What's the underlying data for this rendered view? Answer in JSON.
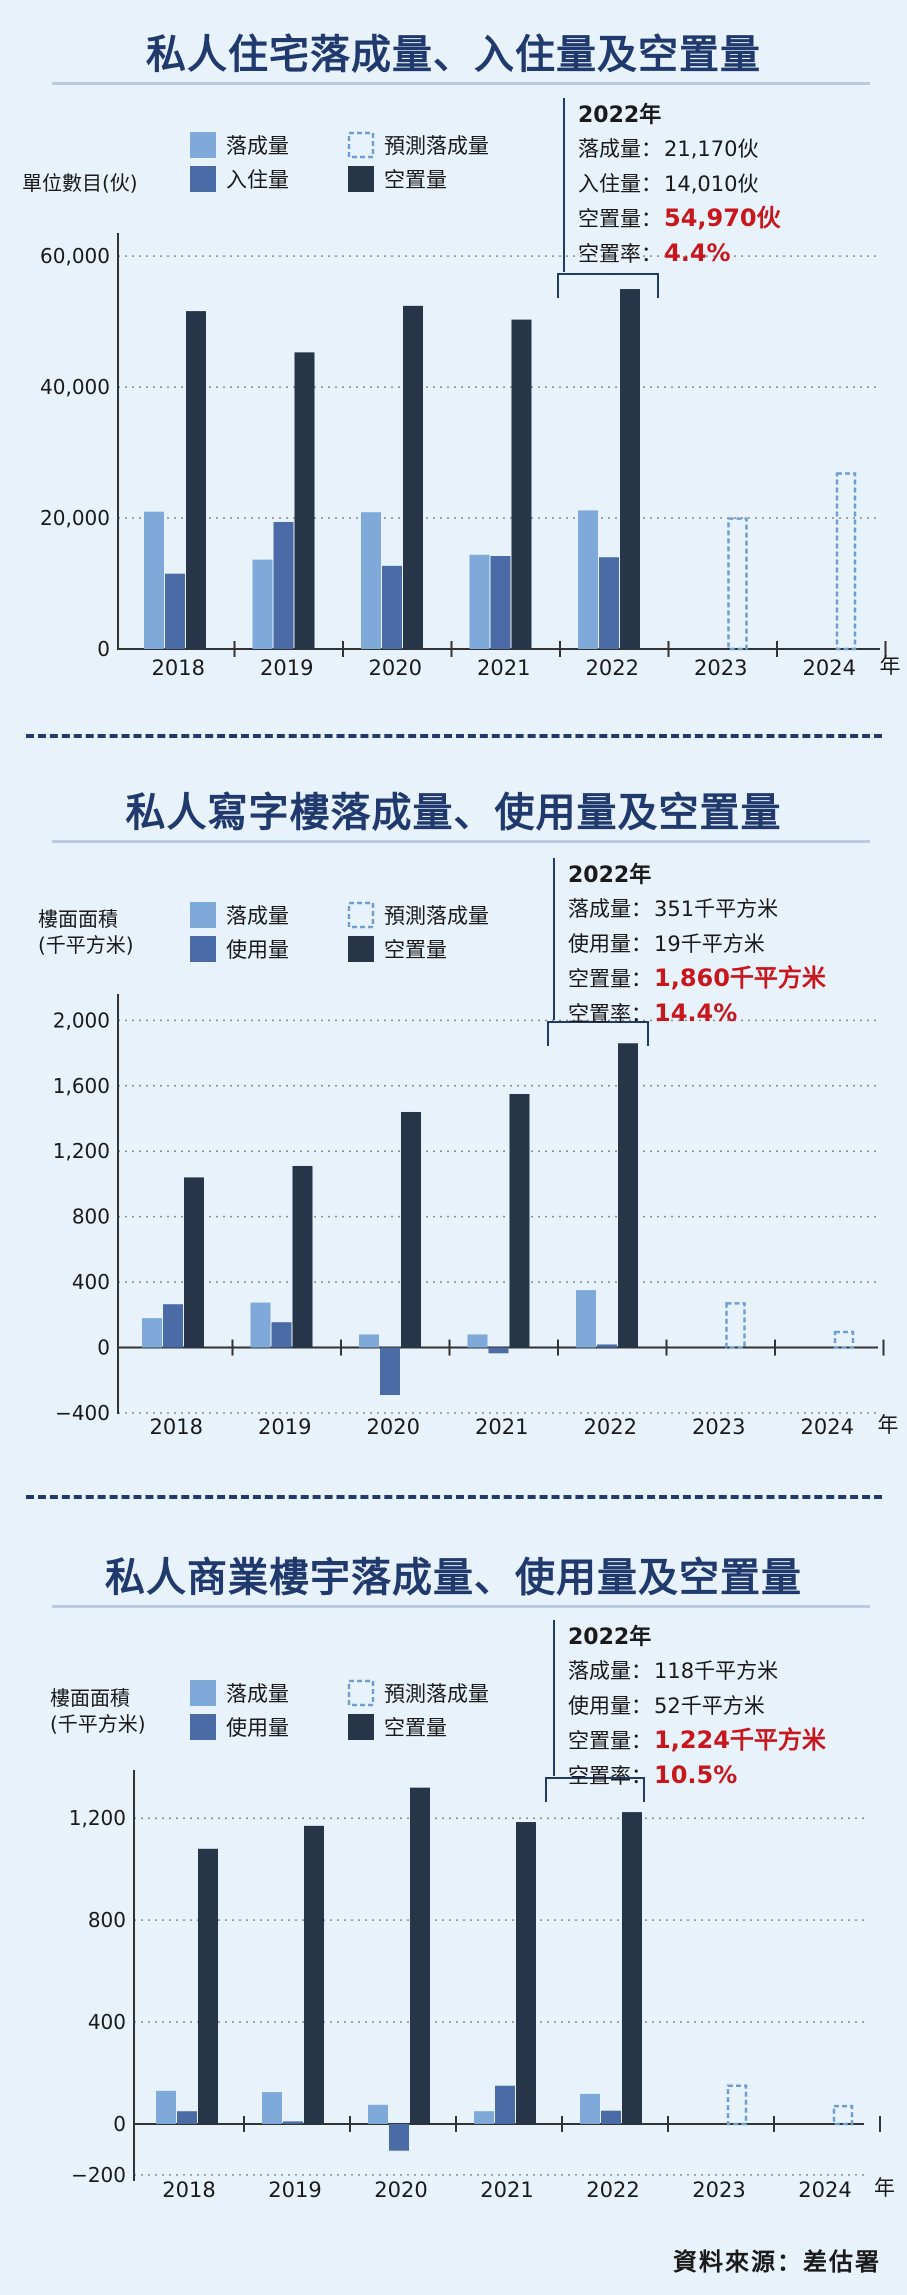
{
  "year_unit": "年",
  "source": "資料來源：差估署",
  "colors": {
    "completion": "#7ea9d9",
    "takeup": "#4a6ba6",
    "vacancy": "#263548",
    "forecast": "#6f9fd0",
    "highlight": "#c8161d",
    "title": "#213a6e"
  },
  "chart_data": [
    {
      "type": "bar",
      "title": "私人住宅落成量、入住量及空置量",
      "ylabel_lines": [
        "單位數目(伙)"
      ],
      "categories": [
        "2018",
        "2019",
        "2020",
        "2021",
        "2022",
        "2023",
        "2024"
      ],
      "ylim": [
        0,
        62000
      ],
      "yticks": [
        0,
        20000,
        40000,
        60000
      ],
      "ytick_labels": [
        "0",
        "20,000",
        "40,000",
        "60,000"
      ],
      "grid": true,
      "legend": [
        {
          "key": "completion",
          "label": "落成量"
        },
        {
          "key": "forecast",
          "label": "預測落成量"
        },
        {
          "key": "takeup",
          "label": "入住量"
        },
        {
          "key": "vacancy",
          "label": "空置量"
        }
      ],
      "series": [
        {
          "key": "completion",
          "name": "落成量",
          "values": [
            20968,
            13643,
            20888,
            14386,
            21170,
            null,
            null
          ]
        },
        {
          "key": "takeup",
          "name": "入住量",
          "values": [
            11500,
            19400,
            12700,
            14200,
            14010,
            null,
            null
          ]
        },
        {
          "key": "vacancy",
          "name": "空置量",
          "values": [
            51600,
            45300,
            52400,
            50300,
            54970,
            null,
            null
          ]
        },
        {
          "key": "forecast",
          "name": "預測落成量",
          "values": [
            null,
            null,
            null,
            null,
            null,
            19900,
            26800
          ]
        }
      ],
      "annotation": {
        "year": "2022年",
        "lines": [
          {
            "label": "落成量",
            "value": "21,170伙",
            "highlight": false
          },
          {
            "label": "入住量",
            "value": "14,010伙",
            "highlight": false
          },
          {
            "label": "空置量",
            "value": "54,970伙",
            "highlight": true
          },
          {
            "label": "空置率",
            "value": "4.4%",
            "highlight": true
          }
        ]
      }
    },
    {
      "type": "bar",
      "title": "私人寫字樓落成量、使用量及空置量",
      "ylabel_lines": [
        "樓面面積",
        "(千平方米)"
      ],
      "categories": [
        "2018",
        "2019",
        "2020",
        "2021",
        "2022",
        "2023",
        "2024"
      ],
      "ylim": [
        -400,
        2100
      ],
      "yticks": [
        -400,
        0,
        400,
        800,
        1200,
        1600,
        2000
      ],
      "ytick_labels": [
        "−400",
        "0",
        "400",
        "800",
        "1,200",
        "1,600",
        "2,000"
      ],
      "grid": true,
      "legend": [
        {
          "key": "completion",
          "label": "落成量"
        },
        {
          "key": "forecast",
          "label": "預測落成量"
        },
        {
          "key": "takeup",
          "label": "使用量"
        },
        {
          "key": "vacancy",
          "label": "空置量"
        }
      ],
      "series": [
        {
          "key": "completion",
          "name": "落成量",
          "values": [
            180,
            275,
            80,
            80,
            351,
            null,
            null
          ]
        },
        {
          "key": "takeup",
          "name": "使用量",
          "values": [
            265,
            155,
            -290,
            -35,
            19,
            null,
            null
          ]
        },
        {
          "key": "vacancy",
          "name": "空置量",
          "values": [
            1040,
            1110,
            1440,
            1550,
            1860,
            null,
            null
          ]
        },
        {
          "key": "forecast",
          "name": "預測落成量",
          "values": [
            null,
            null,
            null,
            null,
            null,
            270,
            95
          ]
        }
      ],
      "annotation": {
        "year": "2022年",
        "lines": [
          {
            "label": "落成量",
            "value": "351千平方米",
            "highlight": false
          },
          {
            "label": "使用量",
            "value": "19千平方米",
            "highlight": false
          },
          {
            "label": "空置量",
            "value": "1,860千平方米",
            "highlight": true
          },
          {
            "label": "空置率",
            "value": "14.4%",
            "highlight": true
          }
        ]
      }
    },
    {
      "type": "bar",
      "title": "私人商業樓宇落成量、使用量及空置量",
      "ylabel_lines": [
        "樓面面積",
        "(千平方米)"
      ],
      "categories": [
        "2018",
        "2019",
        "2020",
        "2021",
        "2022",
        "2023",
        "2024"
      ],
      "ylim": [
        -220,
        1350
      ],
      "yticks": [
        -200,
        0,
        400,
        800,
        1200
      ],
      "ytick_labels": [
        "−200",
        "0",
        "400",
        "800",
        "1,200"
      ],
      "grid": true,
      "legend": [
        {
          "key": "completion",
          "label": "落成量"
        },
        {
          "key": "forecast",
          "label": "預測落成量"
        },
        {
          "key": "takeup",
          "label": "使用量"
        },
        {
          "key": "vacancy",
          "label": "空置量"
        }
      ],
      "series": [
        {
          "key": "completion",
          "name": "落成量",
          "values": [
            130,
            125,
            75,
            50,
            118,
            null,
            null
          ]
        },
        {
          "key": "takeup",
          "name": "使用量",
          "values": [
            50,
            10,
            -105,
            150,
            52,
            null,
            null
          ]
        },
        {
          "key": "vacancy",
          "name": "空置量",
          "values": [
            1080,
            1170,
            1320,
            1185,
            1224,
            null,
            null
          ]
        },
        {
          "key": "forecast",
          "name": "預測落成量",
          "values": [
            null,
            null,
            null,
            null,
            null,
            150,
            70
          ]
        }
      ],
      "annotation": {
        "year": "2022年",
        "lines": [
          {
            "label": "落成量",
            "value": "118千平方米",
            "highlight": false
          },
          {
            "label": "使用量",
            "value": "52千平方米",
            "highlight": false
          },
          {
            "label": "空置量",
            "value": "1,224千平方米",
            "highlight": true
          },
          {
            "label": "空置率",
            "value": "10.5%",
            "highlight": true
          }
        ]
      }
    }
  ]
}
